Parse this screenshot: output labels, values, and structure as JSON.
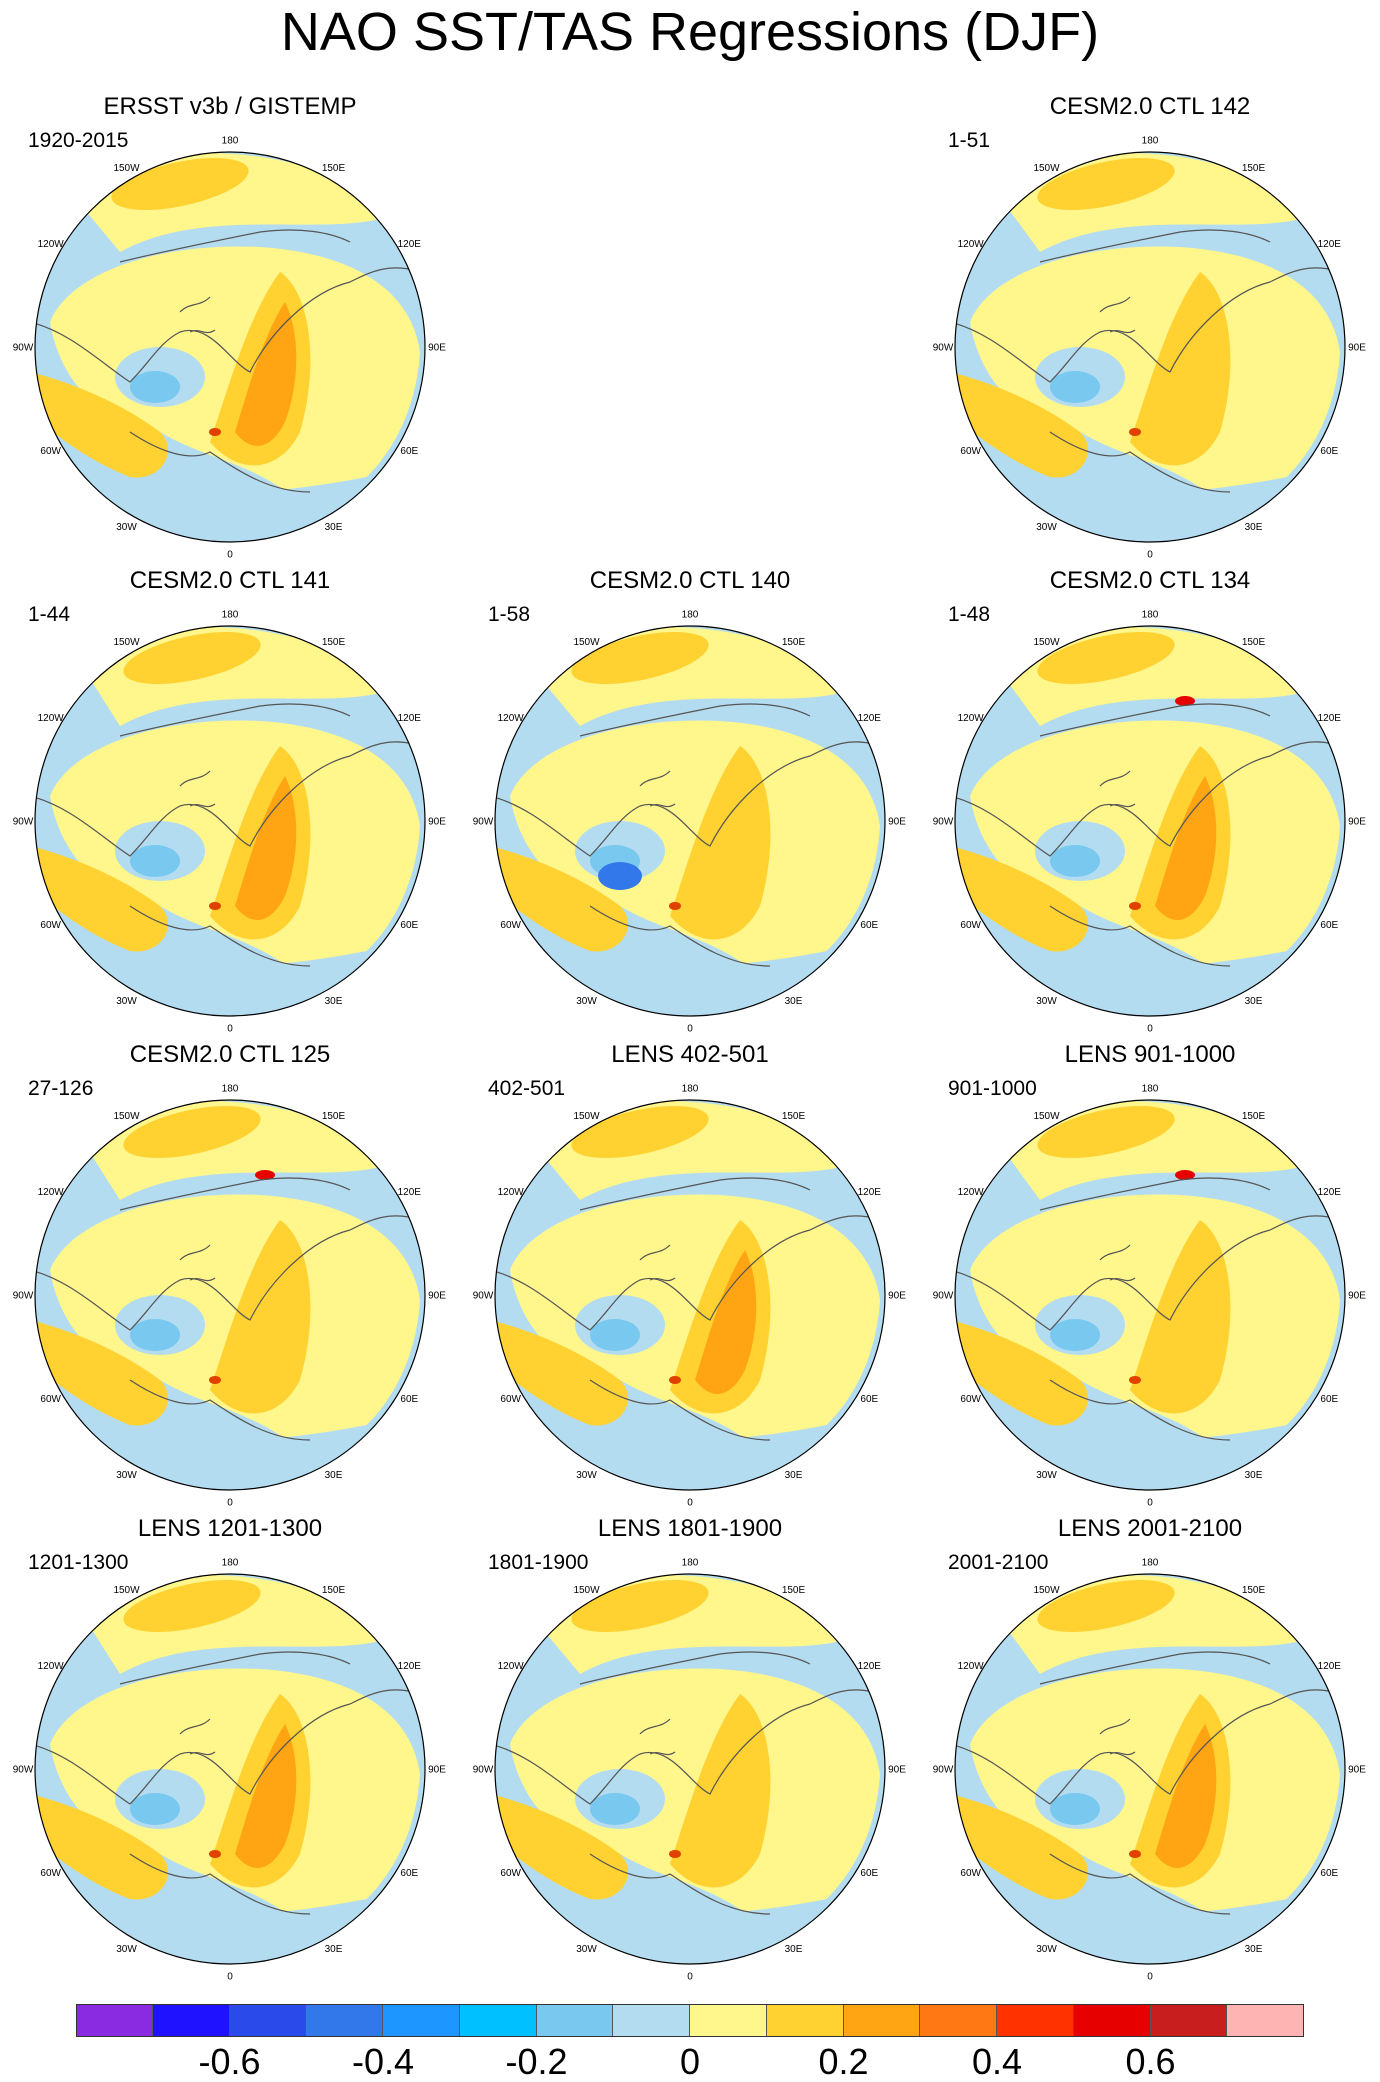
{
  "title": "NAO SST/TAS Regressions (DJF)",
  "lon_labels": {
    "top": "180",
    "upper_left": "150W",
    "upper_right": "150E",
    "mid_upper_left": "120W",
    "mid_upper_right": "120E",
    "left": "90W",
    "right": "90E",
    "mid_lower_left": "60W",
    "mid_lower_right": "60E",
    "lower_left": "30W",
    "lower_right": "30E",
    "bottom": "0"
  },
  "panels": [
    {
      "title": "ERSST v3b / GISTEMP",
      "period": "1920-2015"
    },
    {
      "title": "CESM2.0 CTL 142",
      "period": "1-51"
    },
    {
      "title": "CESM2.0 CTL 141",
      "period": "1-44"
    },
    {
      "title": "CESM2.0 CTL 140",
      "period": "1-58"
    },
    {
      "title": "CESM2.0 CTL 134",
      "period": "1-48"
    },
    {
      "title": "CESM2.0 CTL 125",
      "period": "27-126"
    },
    {
      "title": "LENS 402-501",
      "period": "402-501"
    },
    {
      "title": "LENS 901-1000",
      "period": "901-1000"
    },
    {
      "title": "LENS 1201-1300",
      "period": "1201-1300"
    },
    {
      "title": "LENS 1801-1900",
      "period": "1801-1900"
    },
    {
      "title": "LENS 2001-2100",
      "period": "2001-2100"
    }
  ],
  "colorbar": {
    "colors": [
      "#8a2be2",
      "#1e12ff",
      "#2a4bea",
      "#3278ea",
      "#1e96ff",
      "#00c0ff",
      "#78c8f0",
      "#b4dcf0",
      "#fff68c",
      "#ffd232",
      "#ffa514",
      "#ff7814",
      "#ff3200",
      "#e60000",
      "#c81e1e",
      "#ffb4b4"
    ],
    "labels": [
      "-0.6",
      "-0.4",
      "-0.2",
      "0",
      "0.2",
      "0.4",
      "0.6"
    ],
    "label_values": [
      -0.6,
      -0.4,
      -0.2,
      0,
      0.2,
      0.4,
      0.6
    ]
  },
  "palette": {
    "neg_light": "#b4dcf0",
    "neg_mid": "#78c8f0",
    "neg_strong": "#3278ea",
    "pos_light": "#fff68c",
    "pos_mid": "#ffd232",
    "pos_strong": "#ffa514",
    "pos_extreme": "#e60000",
    "coast": "#555555"
  }
}
